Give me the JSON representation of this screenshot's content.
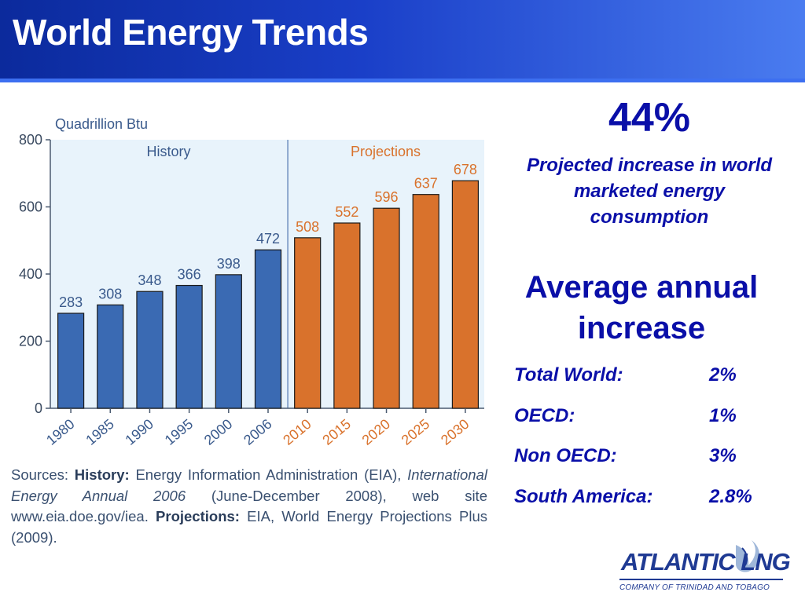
{
  "header": {
    "title": "World Energy Trends"
  },
  "chart_data": {
    "type": "bar",
    "ylabel": "Quadrillion Btu",
    "ylim": [
      0,
      800
    ],
    "yticks": [
      0,
      200,
      400,
      600,
      800
    ],
    "categories": [
      "1980",
      "1985",
      "1990",
      "1995",
      "2000",
      "2006",
      "2010",
      "2015",
      "2020",
      "2025",
      "2030"
    ],
    "values": [
      283,
      308,
      348,
      366,
      398,
      472,
      508,
      552,
      596,
      637,
      678
    ],
    "value_labels": [
      "283",
      "308",
      "348",
      "366",
      "398",
      "472",
      "508",
      "552",
      "596",
      "637",
      "678"
    ],
    "groups": [
      {
        "name": "History",
        "count": 6,
        "color": "#3a6ab3",
        "label_color": "#3a5a8c"
      },
      {
        "name": "Projections",
        "count": 5,
        "color": "#d9722c",
        "label_color": "#d9722c"
      }
    ],
    "background": "#e8f3fb",
    "grid": false
  },
  "sources": {
    "prefix": "Sources: ",
    "history_label": "History:",
    "history_text": " Energy Information Administration (EIA), ",
    "publication": "International Energy Annual 2006",
    "history_text2": " (June-December 2008), web site www.eia.doe.gov/iea. ",
    "projections_label": "Projections:",
    "projections_text": " EIA, World Energy Projections Plus (2009)."
  },
  "stats": {
    "increase_pct": "44%",
    "increase_desc": "Projected increase in world marketed energy consumption",
    "avg_title": "Average annual increase",
    "rates": [
      {
        "label": "Total World:",
        "value": "2%"
      },
      {
        "label": "OECD:",
        "value": "1%"
      },
      {
        "label": "Non OECD:",
        "value": "3%"
      },
      {
        "label": "South America:",
        "value": "2.8%"
      }
    ]
  },
  "logo": {
    "name": "ATLANTIC LNG",
    "subtitle": "COMPANY OF TRINIDAD AND TOBAGO",
    "color": "#1f3a93",
    "icon": "gas-flame-icon"
  }
}
